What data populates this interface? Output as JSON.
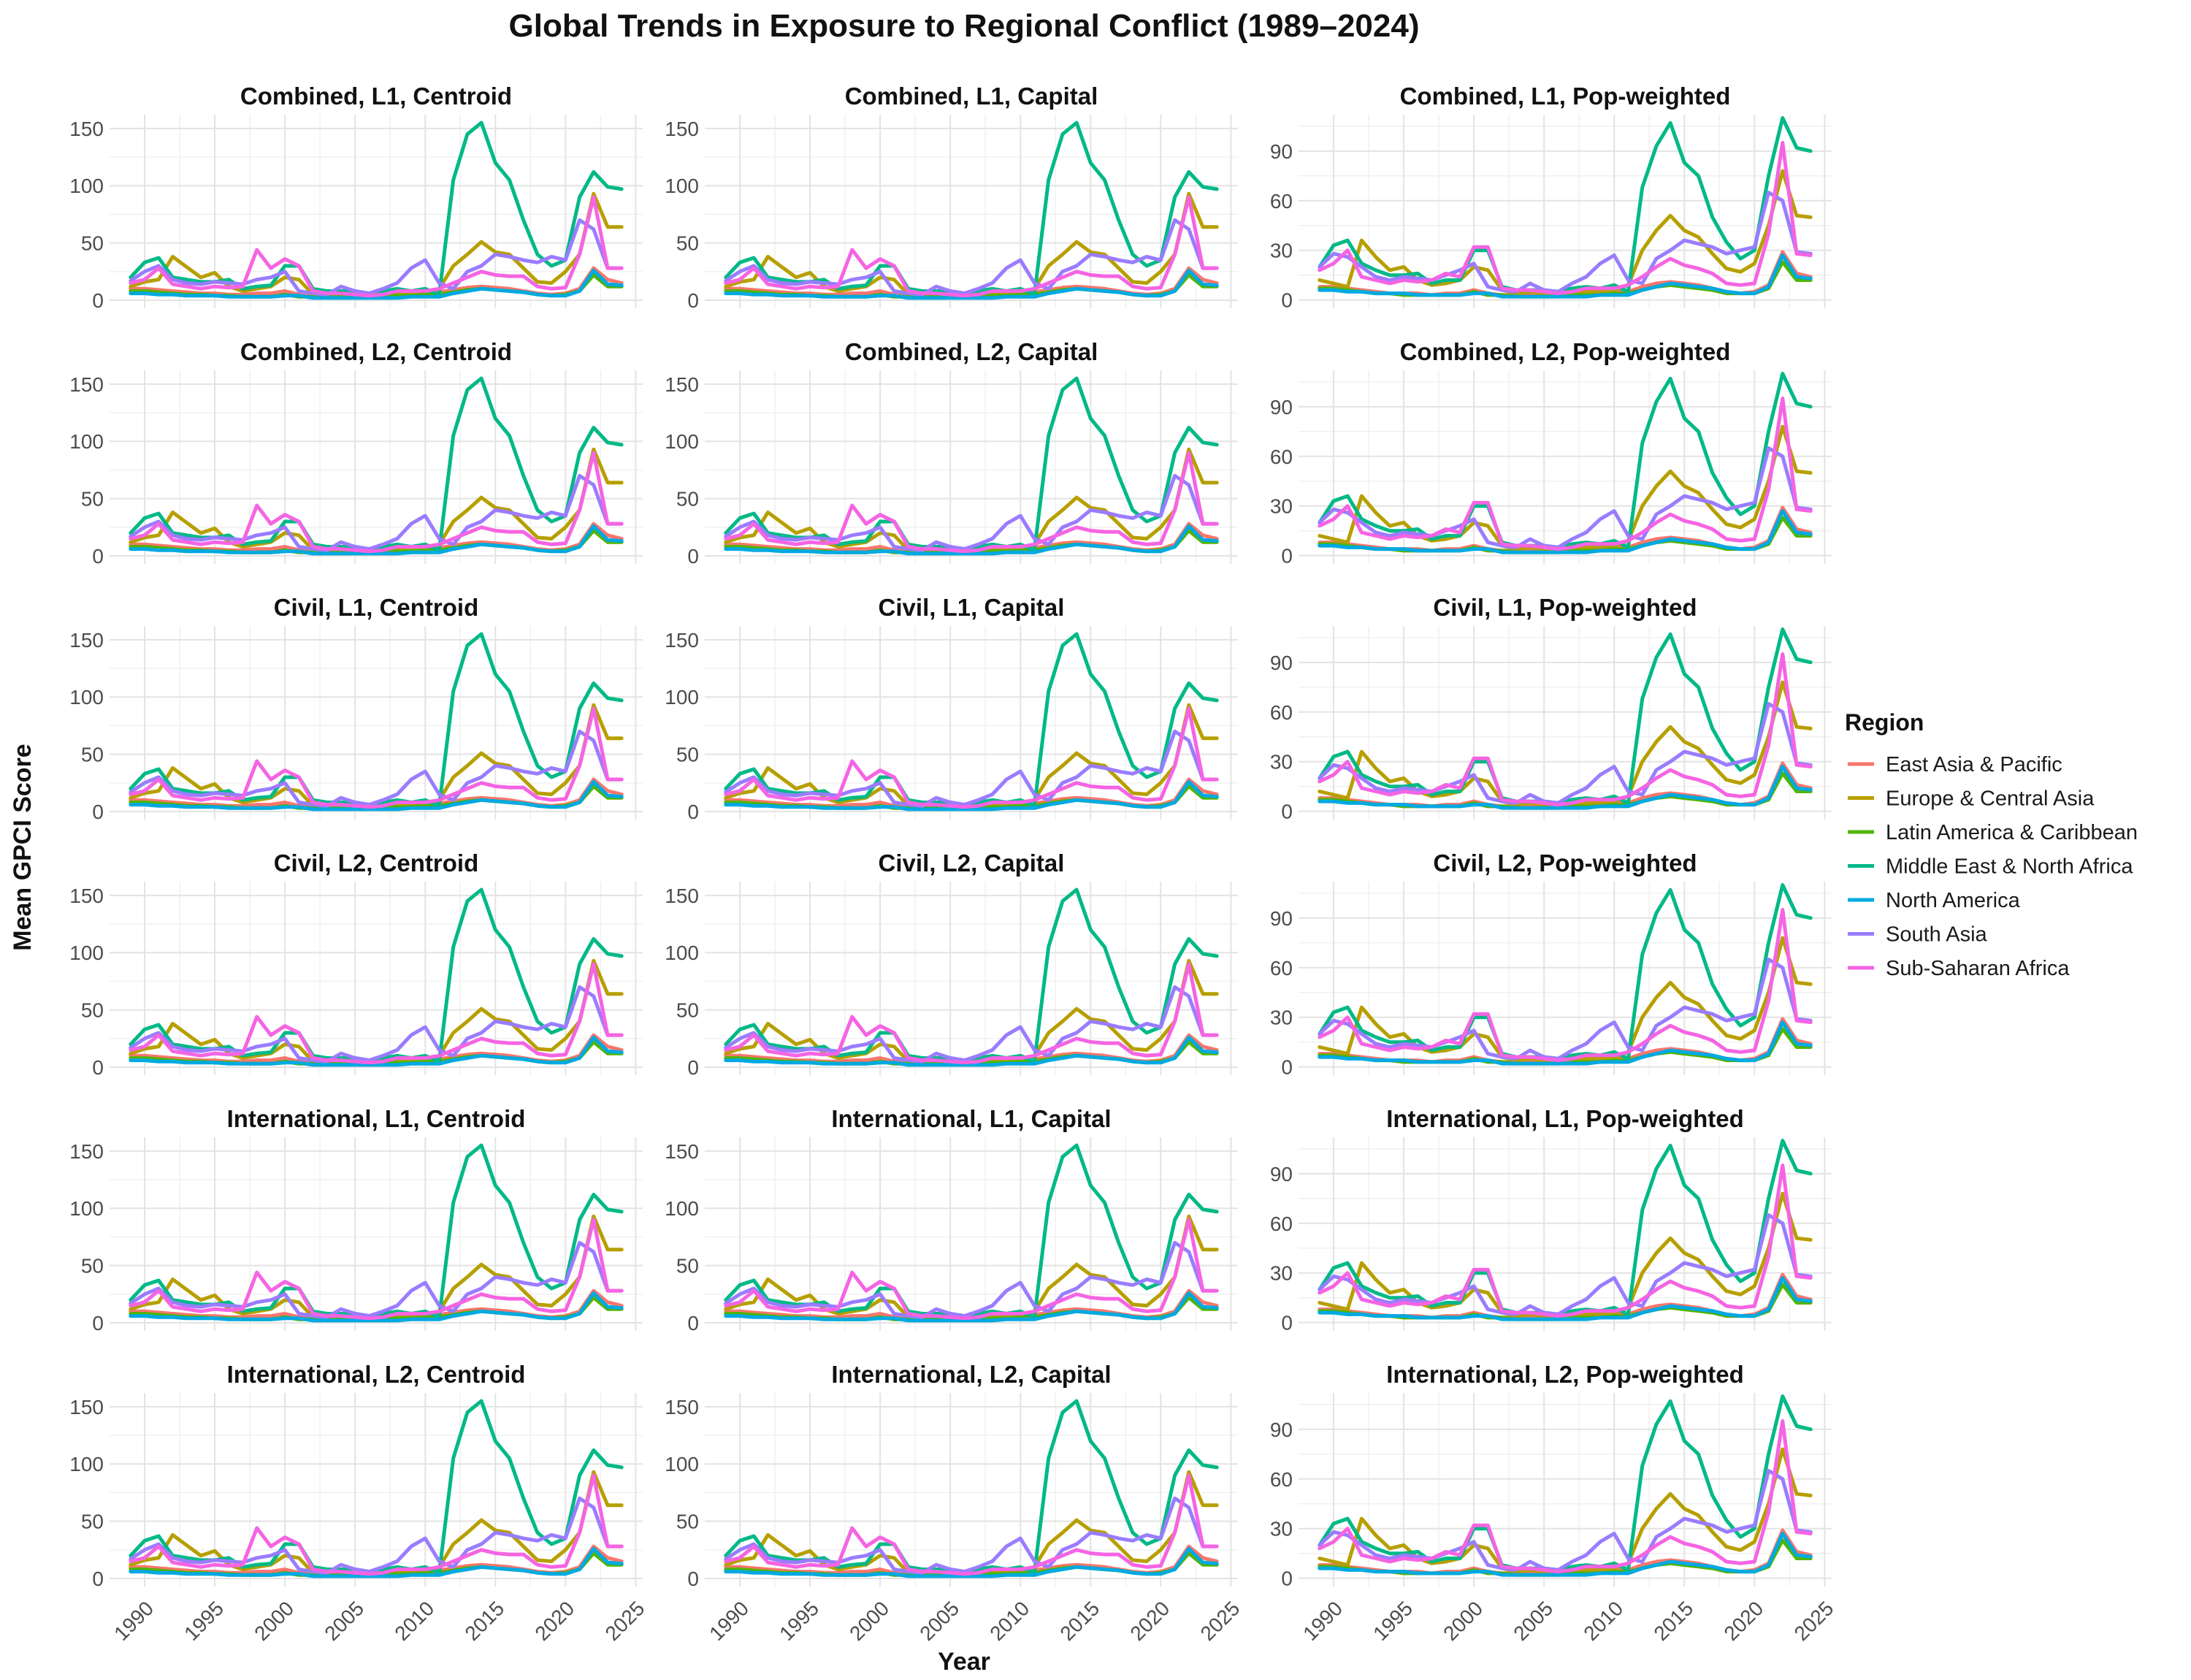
{
  "chart_data": {
    "type": "line",
    "title": "Global Trends in Exposure to Regional Conflict (1989–2024)",
    "xlabel": "Year",
    "ylabel": "Mean GPCI Score",
    "x": [
      1989,
      1990,
      1991,
      1992,
      1993,
      1994,
      1995,
      1996,
      1997,
      1998,
      1999,
      2000,
      2001,
      2002,
      2003,
      2004,
      2005,
      2006,
      2007,
      2008,
      2009,
      2010,
      2011,
      2012,
      2013,
      2014,
      2015,
      2016,
      2017,
      2018,
      2019,
      2020,
      2021,
      2022,
      2023,
      2024
    ],
    "xlim": [
      1987.5,
      2025.5
    ],
    "x_ticks": [
      1990,
      1995,
      2000,
      2005,
      2010,
      2015,
      2020,
      2025
    ],
    "legend": {
      "title": "Region",
      "position": "right"
    },
    "grid": true,
    "facet_rows": 6,
    "facet_cols": 3,
    "panels": [
      {
        "label": "Combined, L1, Centroid",
        "profile": "centroid"
      },
      {
        "label": "Combined, L1, Capital",
        "profile": "centroid"
      },
      {
        "label": "Combined, L1, Pop-weighted",
        "profile": "pop"
      },
      {
        "label": "Combined, L2, Centroid",
        "profile": "centroid"
      },
      {
        "label": "Combined, L2, Capital",
        "profile": "centroid"
      },
      {
        "label": "Combined, L2, Pop-weighted",
        "profile": "pop"
      },
      {
        "label": "Civil, L1, Centroid",
        "profile": "centroid"
      },
      {
        "label": "Civil, L1, Capital",
        "profile": "centroid"
      },
      {
        "label": "Civil, L1, Pop-weighted",
        "profile": "pop"
      },
      {
        "label": "Civil, L2, Centroid",
        "profile": "centroid"
      },
      {
        "label": "Civil, L2, Capital",
        "profile": "centroid"
      },
      {
        "label": "Civil, L2, Pop-weighted",
        "profile": "pop"
      },
      {
        "label": "International, L1, Centroid",
        "profile": "centroid"
      },
      {
        "label": "International, L1, Capital",
        "profile": "centroid"
      },
      {
        "label": "International, L1, Pop-weighted",
        "profile": "pop"
      },
      {
        "label": "International, L2, Centroid",
        "profile": "centroid"
      },
      {
        "label": "International, L2, Capital",
        "profile": "centroid"
      },
      {
        "label": "International, L2, Pop-weighted",
        "profile": "pop"
      }
    ],
    "profiles": {
      "centroid": {
        "ylim": [
          -7,
          162
        ],
        "y_ticks": [
          0,
          50,
          100,
          150
        ],
        "series": [
          {
            "name": "East Asia & Pacific",
            "color": "#F8766D",
            "values": [
              10,
              10,
              9,
              8,
              7,
              6,
              6,
              5,
              5,
              6,
              6,
              8,
              5,
              4,
              4,
              4,
              4,
              4,
              5,
              5,
              6,
              7,
              7,
              9,
              11,
              12,
              11,
              10,
              8,
              6,
              5,
              6,
              10,
              28,
              18,
              15
            ]
          },
          {
            "name": "Europe & Central Asia",
            "color": "#B79F00",
            "values": [
              12,
              16,
              18,
              38,
              29,
              20,
              24,
              12,
              8,
              10,
              12,
              20,
              18,
              5,
              4,
              5,
              4,
              4,
              4,
              5,
              5,
              6,
              10,
              30,
              40,
              51,
              42,
              40,
              28,
              16,
              15,
              25,
              40,
              93,
              64,
              64
            ]
          },
          {
            "name": "Latin America & Caribbean",
            "color": "#53B400",
            "values": [
              8,
              8,
              7,
              6,
              5,
              5,
              4,
              4,
              3,
              3,
              3,
              5,
              3,
              3,
              3,
              3,
              3,
              3,
              4,
              4,
              4,
              5,
              5,
              7,
              9,
              10,
              9,
              8,
              7,
              5,
              4,
              5,
              8,
              22,
              12,
              12
            ]
          },
          {
            "name": "Middle East & North Africa",
            "color": "#00B987",
            "values": [
              20,
              33,
              37,
              20,
              18,
              16,
              16,
              18,
              10,
              12,
              13,
              30,
              30,
              10,
              8,
              8,
              8,
              6,
              8,
              10,
              8,
              10,
              5,
              105,
              145,
              155,
              120,
              105,
              70,
              40,
              30,
              35,
              90,
              112,
              99,
              97
            ]
          },
          {
            "name": "North America",
            "color": "#00A9E1",
            "values": [
              6,
              6,
              5,
              5,
              4,
              4,
              4,
              3,
              3,
              3,
              3,
              4,
              4,
              2,
              2,
              2,
              2,
              2,
              2,
              2,
              3,
              3,
              3,
              6,
              8,
              10,
              9,
              8,
              7,
              5,
              4,
              4,
              8,
              26,
              14,
              13
            ]
          },
          {
            "name": "South Asia",
            "color": "#9A7CFF",
            "values": [
              17,
              25,
              30,
              18,
              15,
              14,
              16,
              15,
              14,
              18,
              20,
              25,
              8,
              6,
              5,
              12,
              8,
              6,
              10,
              15,
              28,
              35,
              15,
              10,
              25,
              30,
              40,
              38,
              35,
              33,
              38,
              35,
              70,
              62,
              28,
              28
            ]
          },
          {
            "name": "Sub-Saharan Africa",
            "color": "#F564E3",
            "values": [
              15,
              18,
              28,
              14,
              12,
              10,
              12,
              11,
              12,
              44,
              28,
              36,
              30,
              8,
              6,
              6,
              5,
              4,
              5,
              8,
              8,
              8,
              10,
              15,
              20,
              25,
              22,
              21,
              21,
              12,
              10,
              11,
              40,
              90,
              28,
              28
            ]
          }
        ]
      },
      "pop": {
        "ylim": [
          -5,
          112
        ],
        "y_ticks": [
          0,
          30,
          60,
          90
        ],
        "series": [
          {
            "name": "East Asia & Pacific",
            "color": "#F8766D",
            "values": [
              8,
              8,
              7,
              6,
              5,
              4,
              4,
              4,
              3,
              4,
              4,
              6,
              4,
              3,
              3,
              3,
              3,
              3,
              3,
              4,
              4,
              5,
              5,
              8,
              10,
              11,
              10,
              9,
              7,
              5,
              4,
              5,
              9,
              29,
              16,
              14
            ]
          },
          {
            "name": "Europe & Central Asia",
            "color": "#B79F00",
            "values": [
              12,
              10,
              8,
              36,
              26,
              18,
              20,
              12,
              9,
              10,
              12,
              20,
              18,
              6,
              4,
              5,
              4,
              4,
              5,
              5,
              5,
              6,
              9,
              30,
              42,
              51,
              42,
              38,
              28,
              19,
              17,
              22,
              45,
              78,
              51,
              50
            ]
          },
          {
            "name": "Latin America & Caribbean",
            "color": "#53B400",
            "values": [
              7,
              7,
              6,
              5,
              4,
              4,
              3,
              3,
              3,
              3,
              3,
              5,
              3,
              3,
              2,
              2,
              2,
              2,
              3,
              3,
              3,
              4,
              4,
              6,
              8,
              9,
              8,
              7,
              6,
              4,
              4,
              4,
              7,
              23,
              12,
              12
            ]
          },
          {
            "name": "Middle East & North Africa",
            "color": "#00B987",
            "values": [
              20,
              33,
              36,
              22,
              18,
              15,
              15,
              16,
              10,
              12,
              12,
              30,
              30,
              8,
              6,
              6,
              6,
              5,
              7,
              8,
              7,
              9,
              5,
              68,
              93,
              107,
              83,
              75,
              50,
              35,
              25,
              30,
              75,
              110,
              92,
              90
            ]
          },
          {
            "name": "North America",
            "color": "#00A9E1",
            "values": [
              6,
              6,
              5,
              5,
              4,
              4,
              4,
              3,
              3,
              3,
              3,
              4,
              4,
              2,
              2,
              2,
              2,
              2,
              2,
              2,
              3,
              3,
              3,
              6,
              8,
              10,
              9,
              8,
              7,
              5,
              4,
              4,
              8,
              27,
              14,
              13
            ]
          },
          {
            "name": "South Asia",
            "color": "#9A7CFF",
            "values": [
              20,
              28,
              26,
              20,
              14,
              12,
              14,
              13,
              12,
              15,
              18,
              22,
              8,
              6,
              5,
              10,
              6,
              5,
              10,
              14,
              22,
              27,
              12,
              10,
              25,
              30,
              36,
              34,
              32,
              28,
              30,
              32,
              65,
              60,
              29,
              28
            ]
          },
          {
            "name": "Sub-Saharan Africa",
            "color": "#F564E3",
            "values": [
              18,
              22,
              30,
              14,
              12,
              10,
              12,
              11,
              12,
              16,
              14,
              32,
              32,
              7,
              6,
              6,
              5,
              4,
              5,
              7,
              7,
              7,
              9,
              14,
              20,
              25,
              21,
              19,
              16,
              10,
              9,
              10,
              40,
              95,
              28,
              27
            ]
          }
        ]
      }
    }
  }
}
